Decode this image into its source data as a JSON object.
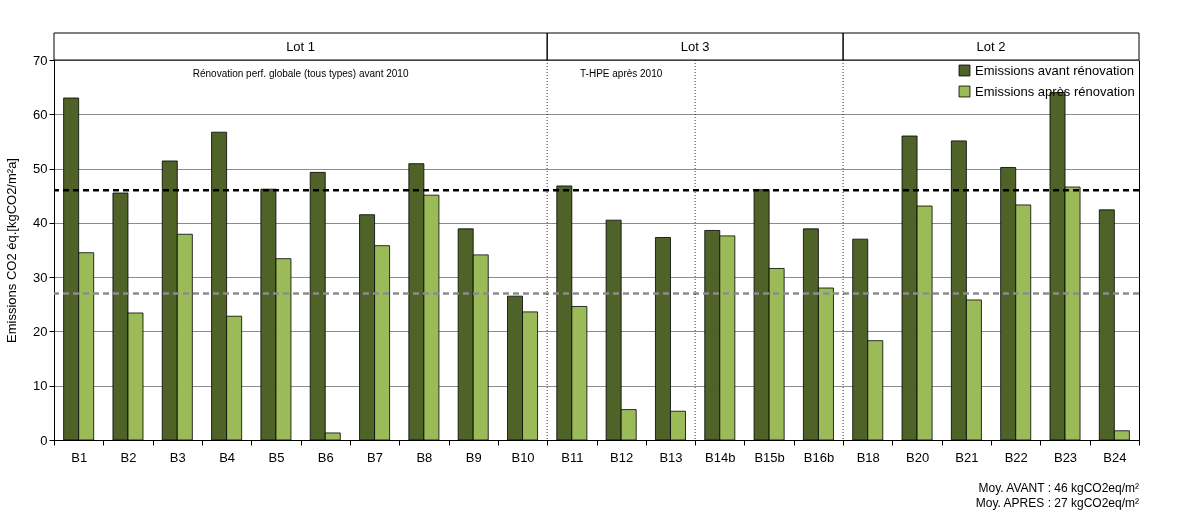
{
  "chart_data": {
    "type": "bar",
    "ylabel": "Emissions CO2 éq.[kgCO2/m²a]",
    "categories": [
      "B1",
      "B2",
      "B3",
      "B4",
      "B5",
      "B6",
      "B7",
      "B8",
      "B9",
      "B10",
      "B11",
      "B12",
      "B13",
      "B14b",
      "B15b",
      "B16b",
      "B18",
      "B20",
      "B21",
      "B22",
      "B23",
      "B24"
    ],
    "series": [
      {
        "name": "Emissions avant rénovation",
        "color": "#4f6228",
        "values": [
          63,
          45.5,
          51.4,
          56.7,
          46.2,
          49.3,
          41.5,
          50.9,
          38.9,
          26.5,
          46.8,
          40.5,
          37.3,
          38.6,
          46.1,
          38.9,
          37,
          56,
          55.1,
          50.2,
          64,
          42.4
        ]
      },
      {
        "name": "Emissions après rénovation",
        "color": "#9bbb59",
        "values": [
          34.5,
          23.4,
          37.9,
          22.8,
          33.4,
          1.3,
          35.8,
          45.1,
          34.1,
          23.6,
          24.6,
          5.6,
          5.3,
          37.6,
          31.6,
          28,
          18.3,
          43.1,
          25.8,
          43.3,
          46.6,
          1.7
        ]
      }
    ],
    "ylim": [
      0,
      70
    ],
    "yticks": [
      0,
      10,
      20,
      30,
      40,
      50,
      60,
      70
    ],
    "grid": "y",
    "legend": "top right",
    "ref_lines": [
      {
        "axis": "y",
        "value": 46,
        "color": "#000000",
        "line_style": "dashed"
      },
      {
        "axis": "y",
        "value": 27,
        "color": "#8c8c8c",
        "line_style": "dashed"
      }
    ],
    "annotations": [
      "Lot 1",
      "Lot 3",
      "Lot 2",
      "Rénovation perf. globale (tous types) avant 2010",
      "T-HPE après 2010",
      "Moy. AVANT : 46 kgCO2eq/m²",
      "Moy. APRES : 27 kgCO2eq/m²"
    ]
  }
}
